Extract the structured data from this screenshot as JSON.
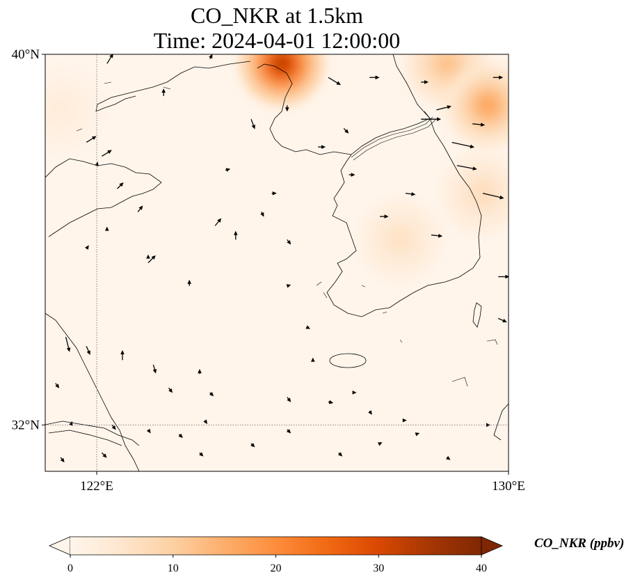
{
  "title": {
    "line1": "CO_NKR at 1.5km",
    "line2": "Time: 2024-04-01 12:00:00"
  },
  "map": {
    "extent": {
      "lon": [
        121,
        130
      ],
      "lat": [
        31,
        40
      ]
    },
    "gridlines": {
      "lon": [
        122,
        130
      ],
      "lat": [
        32,
        40
      ]
    },
    "lat_ticks": [
      {
        "value": 40,
        "label": "40°N"
      },
      {
        "value": 32,
        "label": "32°N"
      }
    ],
    "lon_ticks": [
      {
        "value": 122,
        "label": "122°E"
      },
      {
        "value": 130,
        "label": "130°E"
      }
    ],
    "field": {
      "variable": "CO_NKR",
      "background_ppbv": 1,
      "plumes": [
        {
          "lon": 125.6,
          "lat": 39.8,
          "peak_ppbv": 32
        },
        {
          "lon": 128.8,
          "lat": 39.8,
          "peak_ppbv": 12
        },
        {
          "lon": 129.6,
          "lat": 38.9,
          "peak_ppbv": 16
        },
        {
          "lon": 129.5,
          "lat": 37.0,
          "peak_ppbv": 7
        },
        {
          "lon": 127.9,
          "lat": 36.0,
          "peak_ppbv": 6
        },
        {
          "lon": 121.3,
          "lat": 38.8,
          "peak_ppbv": 3
        }
      ]
    },
    "wind_vectors": [
      [
        122.2,
        39.8,
        0.5,
        0.8
      ],
      [
        123.3,
        39.1,
        0,
        0.6
      ],
      [
        124.2,
        39.9,
        0.2,
        0.4
      ],
      [
        125.0,
        38.6,
        0.3,
        -0.8
      ],
      [
        125.7,
        38.9,
        0,
        -0.5
      ],
      [
        126.5,
        39.5,
        1.0,
        -0.6
      ],
      [
        127.3,
        39.5,
        0.8,
        0
      ],
      [
        128.3,
        38.6,
        1.6,
        0
      ],
      [
        128.6,
        38.8,
        1.2,
        0.3
      ],
      [
        129.3,
        38.5,
        1.0,
        -0.1
      ],
      [
        129.7,
        39.5,
        0.8,
        0
      ],
      [
        128.3,
        39.4,
        0.6,
        0
      ],
      [
        128.9,
        38.1,
        1.8,
        -0.4
      ],
      [
        129.0,
        37.6,
        1.6,
        -0.3
      ],
      [
        129.5,
        37.0,
        1.7,
        -0.4
      ],
      [
        128.0,
        37.0,
        0.8,
        -0.1
      ],
      [
        127.5,
        36.5,
        0.7,
        0
      ],
      [
        128.5,
        36.1,
        0.9,
        -0.1
      ],
      [
        129.8,
        35.2,
        0.9,
        0
      ],
      [
        129.8,
        34.3,
        0.7,
        -0.3
      ],
      [
        126.8,
        38.4,
        0.4,
        -0.4
      ],
      [
        126.3,
        38.0,
        0.6,
        0
      ],
      [
        126.9,
        37.4,
        0.5,
        0
      ],
      [
        125.4,
        37.0,
        0.4,
        0
      ],
      [
        124.5,
        37.5,
        0.4,
        0.1
      ],
      [
        125.2,
        36.6,
        0.2,
        -0.4
      ],
      [
        125.7,
        36.0,
        0.3,
        -0.4
      ],
      [
        125.7,
        35.0,
        0.3,
        0.1
      ],
      [
        126.1,
        34.1,
        0.2,
        -0.1
      ],
      [
        126.2,
        33.4,
        0,
        0.2
      ],
      [
        121.8,
        38.1,
        0.8,
        0.5
      ],
      [
        122.1,
        37.8,
        0.8,
        0.5
      ],
      [
        122.4,
        37.1,
        0.5,
        0.5
      ],
      [
        122.8,
        36.6,
        0.4,
        0.5
      ],
      [
        124.3,
        36.3,
        0.5,
        0.6
      ],
      [
        123.0,
        35.5,
        0.6,
        0.6
      ],
      [
        121.8,
        35.8,
        0.2,
        0.3
      ],
      [
        123.8,
        35.0,
        0,
        0.5
      ],
      [
        124.7,
        36.0,
        0,
        0.7
      ],
      [
        122.0,
        37.6,
        0.1,
        0.3
      ],
      [
        121.4,
        33.9,
        0.3,
        -1.2
      ],
      [
        121.8,
        33.7,
        0.3,
        -0.7
      ],
      [
        122.5,
        33.4,
        0,
        0.8
      ],
      [
        123.1,
        33.3,
        0.2,
        -0.7
      ],
      [
        124.0,
        33.1,
        0,
        0.4
      ],
      [
        123.4,
        32.8,
        0.3,
        -0.4
      ],
      [
        124.2,
        32.7,
        0.3,
        -0.3
      ],
      [
        125.7,
        32.6,
        0.3,
        -0.4
      ],
      [
        126.5,
        32.5,
        0.4,
        -0.1
      ],
      [
        127.0,
        32.7,
        0.2,
        0
      ],
      [
        127.3,
        32.3,
        0.2,
        -0.3
      ],
      [
        128.0,
        32.1,
        0.1,
        0
      ],
      [
        129.6,
        32.0,
        0.2,
        0
      ],
      [
        121.2,
        32.9,
        0.3,
        -0.4
      ],
      [
        121.5,
        32.0,
        0.1,
        0.3
      ],
      [
        121.3,
        31.3,
        0.3,
        -0.4
      ],
      [
        122.1,
        31.4,
        0.4,
        -0.4
      ],
      [
        122.3,
        32.0,
        0.3,
        -0.4
      ],
      [
        123.0,
        31.9,
        0.2,
        -0.3
      ],
      [
        123.6,
        31.8,
        0.3,
        -0.3
      ],
      [
        124.1,
        32.1,
        0.2,
        -0.3
      ],
      [
        125.0,
        31.6,
        0.3,
        -0.3
      ],
      [
        125.7,
        31.9,
        0.3,
        -0.3
      ],
      [
        126.7,
        31.4,
        0.3,
        -0.3
      ],
      [
        127.5,
        31.6,
        0.2,
        0.1
      ],
      [
        128.2,
        31.8,
        0.3,
        0.1
      ],
      [
        128.8,
        31.3,
        0.3,
        -0.2
      ],
      [
        124.0,
        31.4,
        0.3,
        -0.3
      ],
      [
        123.0,
        35.6,
        0,
        0.3
      ],
      [
        122.2,
        36.2,
        0,
        0.3
      ]
    ]
  },
  "colorbar": {
    "label": "CO_NKR (ppbv)",
    "range": [
      0,
      40
    ],
    "ticks": [
      {
        "value": 0,
        "label": "0"
      },
      {
        "value": 10,
        "label": "10"
      },
      {
        "value": 20,
        "label": "20"
      },
      {
        "value": 30,
        "label": "30"
      },
      {
        "value": 40,
        "label": "40"
      }
    ],
    "extend": "both",
    "colors": [
      "#fff5eb",
      "#fee6ce",
      "#fdd0a2",
      "#fdae6b",
      "#fd8d3c",
      "#f16913",
      "#d94801",
      "#a63603",
      "#7f2704"
    ]
  }
}
